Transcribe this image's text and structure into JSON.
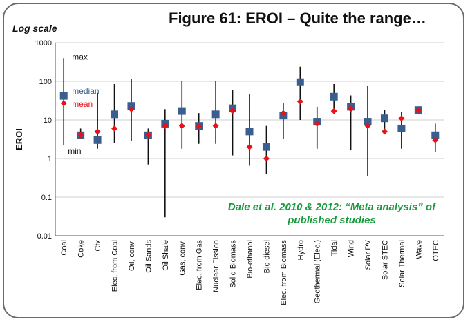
{
  "title": "Figure 61:  EROI – Quite the range…",
  "y_scale_note": "Log scale",
  "source_note": {
    "line1": "Dale et al. 2010 & 2012:  “Meta analysis” of",
    "line2": "published studies"
  },
  "colors": {
    "median": "#3a5f8f",
    "mean": "#e8111a",
    "range_line": "#111111",
    "source_text": "#1a9a3e"
  },
  "chart_data": {
    "type": "scatter",
    "title": "Figure 61:  EROI – Quite the range…",
    "ylabel": "EROI",
    "xlabel": "",
    "yscale": "log",
    "ylim": [
      0.01,
      1000
    ],
    "yticks": [
      "0.01",
      "0.1",
      "1",
      "10",
      "100",
      "1000"
    ],
    "grid": "horizontal",
    "annotations": {
      "max": "max",
      "median": "median",
      "mean": "mean",
      "min": "min"
    },
    "categories": [
      "Coal",
      "Coke",
      "Ctx",
      "Elec. from Coal",
      "Oil, conv.",
      "Oil Sands",
      "Oil Shale",
      "Gas, conv.",
      "Elec. from Gas",
      "Nuclear Fission",
      "Solid Biomass",
      "Bio-ethanol",
      "Bio-diesel",
      "Elec. from Biomass",
      "Hydro",
      "Geothermal (Elec.)",
      "Tidal",
      "Wind",
      "Solar PV",
      "Solar STEC",
      "Solar Thermal",
      "Wave",
      "OTEC"
    ],
    "series": [
      {
        "name": "max",
        "values": [
          400,
          6,
          50,
          85,
          115,
          6,
          19,
          100,
          15,
          100,
          60,
          47,
          7,
          28,
          240,
          22,
          85,
          43,
          75,
          18,
          16,
          20,
          8
        ]
      },
      {
        "name": "median",
        "values": [
          42,
          4,
          3,
          14,
          23,
          4,
          8,
          17,
          7,
          14,
          20,
          5,
          2,
          13,
          95,
          9,
          40,
          22,
          9,
          11,
          6,
          18,
          4
        ]
      },
      {
        "name": "mean",
        "values": [
          27,
          4,
          5,
          6,
          19,
          4,
          7,
          7,
          7,
          7,
          17,
          2,
          1,
          15,
          30,
          8,
          17,
          19,
          7,
          5,
          11,
          18,
          3
        ]
      },
      {
        "name": "min",
        "values": [
          2.2,
          3.3,
          1.8,
          2.5,
          2.8,
          0.7,
          0.03,
          1.8,
          2.4,
          2.4,
          1.2,
          0.65,
          0.4,
          3.2,
          10,
          1.8,
          17,
          1.7,
          0.35,
          5,
          1.8,
          17,
          1.5
        ]
      }
    ]
  }
}
